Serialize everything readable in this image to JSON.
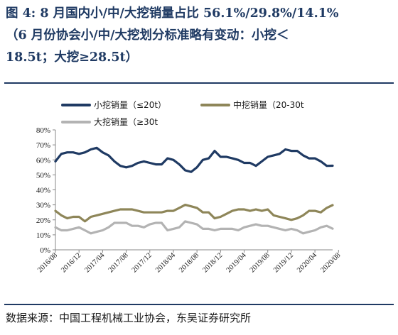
{
  "header": {
    "title": "图 4: 8 月国内小/中/大挖销量占比 56.1%/29.8%/14.1%\n（6 月份协会小/中/大挖划分标准略有变动：小挖＜\n18.5t；大挖≥28.5t）"
  },
  "footer": {
    "source": "数据来源：中国工程机械工业协会，东吴证券研究所"
  },
  "chart_data": {
    "type": "line",
    "title": "",
    "xlabel": "",
    "ylabel": "",
    "ylim": [
      0,
      80
    ],
    "yticks": [
      "0%",
      "10%",
      "20%",
      "30%",
      "40%",
      "50%",
      "60%",
      "70%",
      "80%"
    ],
    "xticks": [
      "2016/08",
      "2016/12",
      "2017/04",
      "2017/08",
      "2017/12",
      "2018/04",
      "2018/08",
      "2018/12",
      "2019/04",
      "2019/08",
      "2019/12",
      "2020/04",
      "2020/08"
    ],
    "grid": false,
    "legend_position": "top",
    "series": [
      {
        "name": "小挖销量（≤20t）",
        "color": "#1f3a63",
        "values": [
          59,
          64,
          65,
          65,
          64,
          65,
          67,
          68,
          65,
          63,
          59,
          56,
          55,
          56,
          58,
          59,
          58,
          57,
          57,
          61,
          60,
          57,
          53,
          52,
          55,
          60,
          61,
          66,
          62,
          62,
          61,
          60,
          58,
          58,
          56,
          59,
          62,
          63,
          64,
          67,
          66,
          66,
          63,
          61,
          61,
          59,
          56,
          56.1
        ]
      },
      {
        "name": "中挖销量（20-30t",
        "color": "#8e8659",
        "values": [
          26,
          23,
          21,
          22,
          22,
          19,
          22,
          23,
          24,
          25,
          26,
          27,
          27,
          27,
          26,
          25,
          25,
          25,
          25,
          26,
          26,
          28,
          30,
          29,
          28,
          25,
          25,
          21,
          22,
          24,
          26,
          27,
          27,
          26,
          27,
          26,
          27,
          23,
          22,
          21,
          20,
          21,
          23,
          26,
          26,
          25,
          28,
          29.8
        ]
      },
      {
        "name": "大挖销量（≥30t",
        "color": "#b3b3b3",
        "values": [
          15,
          13,
          13,
          14,
          15,
          13,
          11,
          12,
          13,
          15,
          18,
          18,
          18,
          16,
          16,
          15,
          17,
          18,
          18,
          13,
          14,
          15,
          19,
          18,
          17,
          14,
          14,
          13,
          14,
          14,
          14,
          13,
          15,
          16,
          17,
          16,
          16,
          15,
          14,
          13,
          14,
          13,
          11,
          12,
          13,
          15,
          16,
          14.1
        ]
      }
    ]
  }
}
